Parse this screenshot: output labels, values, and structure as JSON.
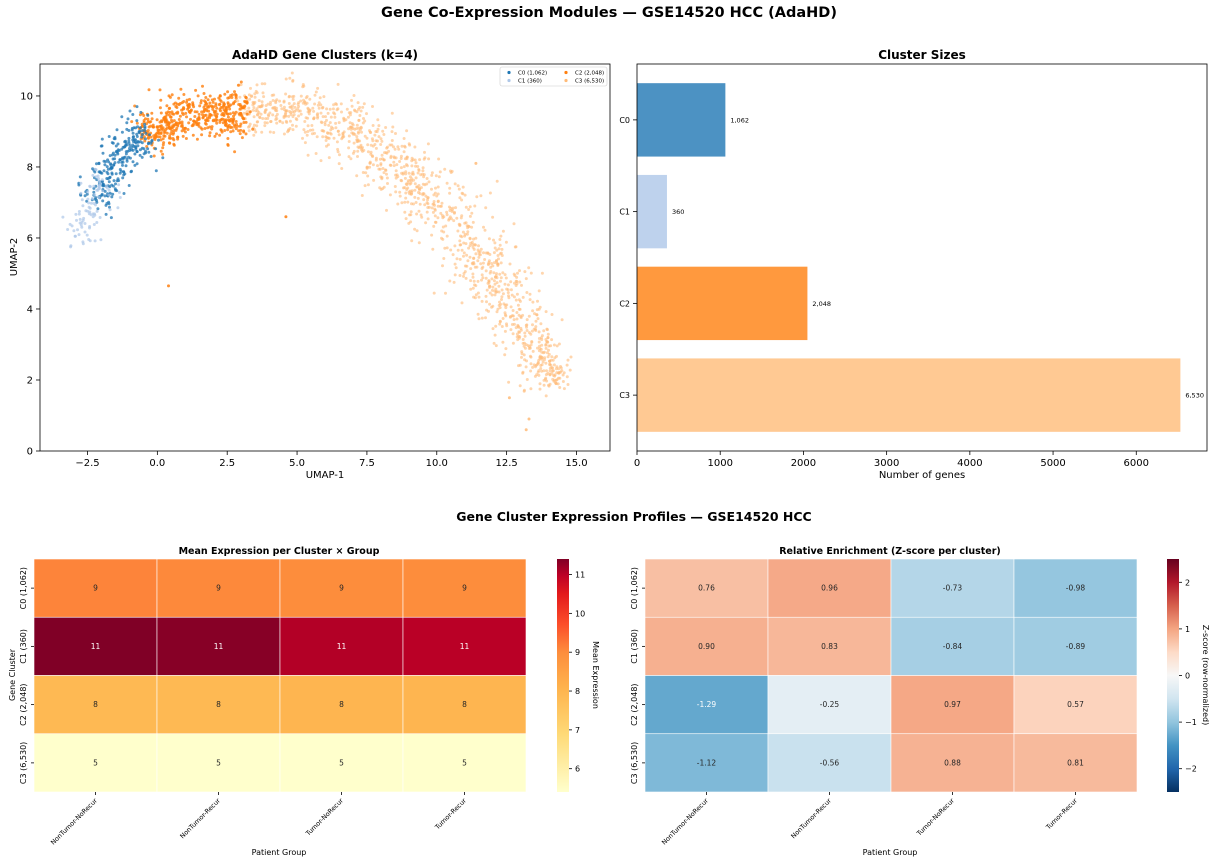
{
  "figure": {
    "title": "Gene Co-Expression Modules — GSE14520 HCC (AdaHD)",
    "subtitle": "Gene Cluster Expression Profiles — GSE14520 HCC"
  },
  "colors": {
    "C0": "#1f77b4",
    "C1": "#aec7e8",
    "C2": "#ff7f0e",
    "C3": "#ffbb78"
  },
  "chart_data": [
    {
      "type": "scatter",
      "title": "AdaHD Gene Clusters (k=4)",
      "xlabel": "UMAP-1",
      "ylabel": "UMAP-2",
      "xlim": [
        -4.2,
        16.2
      ],
      "ylim": [
        0,
        10.9
      ],
      "xticks": [
        -2.5,
        0.0,
        2.5,
        5.0,
        7.5,
        10.0,
        12.5,
        15.0
      ],
      "xtick_labels": [
        "−2.5",
        "0.0",
        "2.5",
        "5.0",
        "7.5",
        "10.0",
        "12.5",
        "15.0"
      ],
      "yticks": [
        0,
        2,
        4,
        6,
        8,
        10
      ],
      "ytick_labels": [
        "0",
        "2",
        "4",
        "6",
        "8",
        "10"
      ],
      "legend_position": "top-right",
      "legend": [
        "C0 (1,062)",
        "C1 (360)",
        "C2 (2,048)",
        "C3 (6,530)"
      ],
      "series": [
        {
          "name": "C0 (1,062)",
          "count": 1062
        },
        {
          "name": "C1 (360)",
          "count": 360
        },
        {
          "name": "C2 (2,048)",
          "count": 2048
        },
        {
          "name": "C3 (6,530)",
          "count": 6530
        }
      ]
    },
    {
      "type": "bar",
      "orientation": "horizontal",
      "title": "Cluster Sizes",
      "xlabel": "Number of genes",
      "categories": [
        "C0",
        "C1",
        "C2",
        "C3"
      ],
      "values": [
        1062,
        360,
        2048,
        6530
      ],
      "value_labels": [
        "1,062",
        "360",
        "2,048",
        "6,530"
      ],
      "xlim": [
        0,
        6850
      ],
      "xticks": [
        0,
        1000,
        2000,
        3000,
        4000,
        5000,
        6000
      ],
      "xtick_labels": [
        "0",
        "1000",
        "2000",
        "3000",
        "4000",
        "5000",
        "6000"
      ]
    },
    {
      "type": "heatmap",
      "title": "Mean Expression per Cluster × Group",
      "xlabel": "Patient Group",
      "ylabel": "Gene Cluster",
      "rows": [
        "C0 (1,062)",
        "C1 (360)",
        "C2 (2,048)",
        "C3 (6,530)"
      ],
      "columns": [
        "NonTumor-NoRecur",
        "NonTumor-Recur",
        "Tumor-NoRecur",
        "Tumor-Recur"
      ],
      "values": [
        [
          9.1,
          9.05,
          9.0,
          9.0
        ],
        [
          11.4,
          11.35,
          11.05,
          11.0
        ],
        [
          7.9,
          7.9,
          8.0,
          8.0
        ],
        [
          5.3,
          5.3,
          5.35,
          5.35
        ]
      ],
      "cell_labels": [
        [
          "9",
          "9",
          "9",
          "9"
        ],
        [
          "11",
          "11",
          "11",
          "11"
        ],
        [
          "8",
          "8",
          "8",
          "8"
        ],
        [
          "5",
          "5",
          "5",
          "5"
        ]
      ],
      "colorbar_label": "Mean Expression",
      "colorbar_range": [
        5.4,
        11.4
      ],
      "colorbar_ticks": [
        6,
        7,
        8,
        9,
        10,
        11
      ],
      "colorbar_tick_labels": [
        "6",
        "7",
        "8",
        "9",
        "10",
        "11"
      ],
      "colormap": "YlOrRd"
    },
    {
      "type": "heatmap",
      "title": "Relative Enrichment (Z-score per cluster)",
      "xlabel": "Patient Group",
      "rows": [
        "C0 (1,062)",
        "C1 (360)",
        "C2 (2,048)",
        "C3 (6,530)"
      ],
      "columns": [
        "NonTumor-NoRecur",
        "NonTumor-Recur",
        "Tumor-NoRecur",
        "Tumor-Recur"
      ],
      "values": [
        [
          0.76,
          0.96,
          -0.73,
          -0.98
        ],
        [
          0.9,
          0.83,
          -0.84,
          -0.89
        ],
        [
          -1.29,
          -0.25,
          0.97,
          0.57
        ],
        [
          -1.12,
          -0.56,
          0.88,
          0.81
        ]
      ],
      "cell_labels": [
        [
          "0.76",
          "0.96",
          "-0.73",
          "-0.98"
        ],
        [
          "0.90",
          "0.83",
          "-0.84",
          "-0.89"
        ],
        [
          "-1.29",
          "-0.25",
          "0.97",
          "0.57"
        ],
        [
          "-1.12",
          "-0.56",
          "0.88",
          "0.81"
        ]
      ],
      "colorbar_label": "Z-score (row-normalized)",
      "colorbar_range": [
        -2.5,
        2.5
      ],
      "colorbar_ticks": [
        -2,
        -1,
        0,
        1,
        2
      ],
      "colorbar_tick_labels": [
        "−2",
        "−1",
        "0",
        "1",
        "2"
      ],
      "colormap": "RdBu_r"
    }
  ]
}
